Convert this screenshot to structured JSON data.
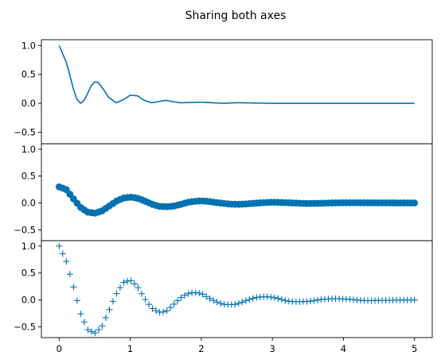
{
  "chart_data": {
    "title": "Sharing both axes",
    "type": "line",
    "xlim": [
      -0.25,
      5.25
    ],
    "ylim": [
      -0.7,
      1.1
    ],
    "x_ticks": [
      0,
      1,
      2,
      3,
      4,
      5
    ],
    "x_tick_labels": [
      "0",
      "1",
      "2",
      "3",
      "4",
      "5"
    ],
    "y_ticks": [
      1.0,
      0.5,
      0.0,
      -0.5
    ],
    "y_tick_labels": [
      "1.0",
      "0.5",
      "0.0",
      "−0.5"
    ],
    "color": "#0072B2",
    "x_range": [
      0,
      5
    ],
    "n_points": 100,
    "panels": [
      {
        "name": "top",
        "type": "line",
        "marker": "none",
        "points": [
          [
            0.0,
            1.0
          ],
          [
            0.1,
            0.71
          ],
          [
            0.15,
            0.49
          ],
          [
            0.2,
            0.25
          ],
          [
            0.25,
            0.07
          ],
          [
            0.3,
            0.0
          ],
          [
            0.35,
            0.05
          ],
          [
            0.4,
            0.17
          ],
          [
            0.45,
            0.3
          ],
          [
            0.5,
            0.37
          ],
          [
            0.55,
            0.36
          ],
          [
            0.6,
            0.28
          ],
          [
            0.7,
            0.1
          ],
          [
            0.8,
            0.01
          ],
          [
            0.9,
            0.06
          ],
          [
            1.0,
            0.14
          ],
          [
            1.1,
            0.13
          ],
          [
            1.2,
            0.05
          ],
          [
            1.3,
            0.01
          ],
          [
            1.5,
            0.05
          ],
          [
            1.7,
            0.01
          ],
          [
            2.0,
            0.02
          ],
          [
            2.3,
            0.0
          ],
          [
            2.5,
            0.01
          ],
          [
            3.0,
            0.0
          ],
          [
            5.0,
            0.0
          ]
        ]
      },
      {
        "name": "middle",
        "type": "scatter",
        "marker": "o",
        "points": [
          [
            0.0,
            0.3
          ],
          [
            0.1,
            0.25
          ],
          [
            0.2,
            0.08
          ],
          [
            0.3,
            -0.08
          ],
          [
            0.4,
            -0.17
          ],
          [
            0.5,
            -0.19
          ],
          [
            0.6,
            -0.15
          ],
          [
            0.7,
            -0.06
          ],
          [
            0.8,
            0.03
          ],
          [
            0.9,
            0.09
          ],
          [
            1.0,
            0.11
          ],
          [
            1.1,
            0.09
          ],
          [
            1.2,
            0.04
          ],
          [
            1.3,
            -0.02
          ],
          [
            1.4,
            -0.06
          ],
          [
            1.5,
            -0.07
          ],
          [
            1.6,
            -0.06
          ],
          [
            1.7,
            -0.03
          ],
          [
            1.8,
            0.01
          ],
          [
            1.9,
            0.03
          ],
          [
            2.0,
            0.04
          ],
          [
            2.1,
            0.03
          ],
          [
            2.2,
            0.01
          ],
          [
            2.4,
            -0.02
          ],
          [
            2.5,
            -0.025
          ],
          [
            2.6,
            -0.02
          ],
          [
            2.8,
            0.0
          ],
          [
            3.0,
            0.015
          ],
          [
            3.5,
            -0.01
          ],
          [
            4.0,
            0.005
          ],
          [
            5.0,
            0.0
          ]
        ]
      },
      {
        "name": "bottom",
        "type": "scatter",
        "marker": "+",
        "points": [
          [
            0.0,
            1.0
          ],
          [
            0.1,
            0.72
          ],
          [
            0.2,
            0.25
          ],
          [
            0.3,
            -0.25
          ],
          [
            0.4,
            -0.55
          ],
          [
            0.5,
            -0.62
          ],
          [
            0.6,
            -0.5
          ],
          [
            0.7,
            -0.2
          ],
          [
            0.8,
            0.1
          ],
          [
            0.9,
            0.32
          ],
          [
            1.0,
            0.37
          ],
          [
            1.1,
            0.25
          ],
          [
            1.2,
            0.03
          ],
          [
            1.3,
            -0.15
          ],
          [
            1.4,
            -0.23
          ],
          [
            1.5,
            -0.22
          ],
          [
            1.6,
            -0.1
          ],
          [
            1.7,
            0.03
          ],
          [
            1.8,
            0.11
          ],
          [
            1.9,
            0.14
          ],
          [
            2.0,
            0.12
          ],
          [
            2.1,
            0.04
          ],
          [
            2.2,
            -0.03
          ],
          [
            2.3,
            -0.08
          ],
          [
            2.4,
            -0.09
          ],
          [
            2.5,
            -0.08
          ],
          [
            2.6,
            -0.03
          ],
          [
            2.7,
            0.02
          ],
          [
            2.8,
            0.05
          ],
          [
            2.9,
            0.06
          ],
          [
            3.0,
            0.05
          ],
          [
            3.1,
            0.02
          ],
          [
            3.2,
            -0.02
          ],
          [
            3.3,
            -0.035
          ],
          [
            3.5,
            -0.03
          ],
          [
            3.7,
            0.01
          ],
          [
            3.9,
            0.025
          ],
          [
            4.1,
            0.01
          ],
          [
            4.3,
            -0.015
          ],
          [
            4.5,
            -0.01
          ],
          [
            5.0,
            0.0
          ]
        ]
      }
    ]
  }
}
